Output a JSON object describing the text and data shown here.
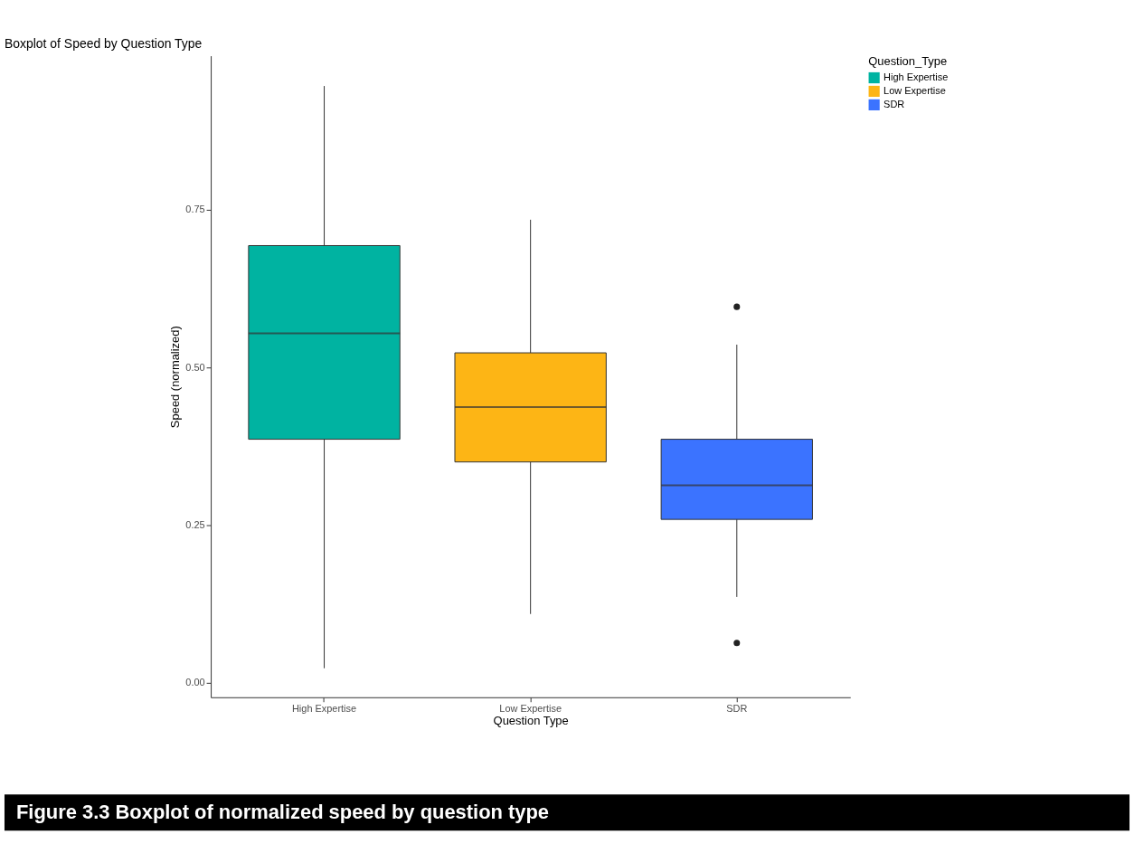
{
  "chart_data": {
    "type": "box",
    "title": "Boxplot of Speed by Question Type",
    "xlabel": "Question Type",
    "ylabel": "Speed (normalized)",
    "legend_title": "Question_Type",
    "categories": [
      "High Expertise",
      "Low Expertise",
      "SDR"
    ],
    "series": [
      {
        "name": "High Expertise",
        "color": "#00b3a1",
        "boxes": [
          {
            "low": 0.023,
            "q1": 0.386,
            "median": 0.554,
            "q3": 0.693,
            "high": 0.946
          },
          null,
          null
        ]
      },
      {
        "name": "Low Expertise",
        "color": "#fdb515",
        "boxes": [
          null,
          {
            "low": 0.109,
            "q1": 0.35,
            "median": 0.437,
            "q3": 0.523,
            "high": 0.734
          },
          null
        ]
      },
      {
        "name": "SDR",
        "color": "#3b73ff",
        "boxes": [
          null,
          null,
          {
            "low": 0.136,
            "q1": 0.259,
            "median": 0.313,
            "q3": 0.386,
            "high": 0.536,
            "outliers": [
              0.596,
              0.063
            ]
          }
        ]
      }
    ],
    "ylim": [
      -0.023,
      0.994
    ],
    "yticks": [
      {
        "value": 0,
        "label": "0.00"
      },
      {
        "value": 0.25,
        "label": "0.25"
      },
      {
        "value": 0.5,
        "label": "0.50"
      },
      {
        "value": 0.75,
        "label": "0.75"
      }
    ],
    "grid": false,
    "legend": "right",
    "annotations": [
      "Figure 3.3 Boxplot of normalized speed by question type"
    ]
  }
}
